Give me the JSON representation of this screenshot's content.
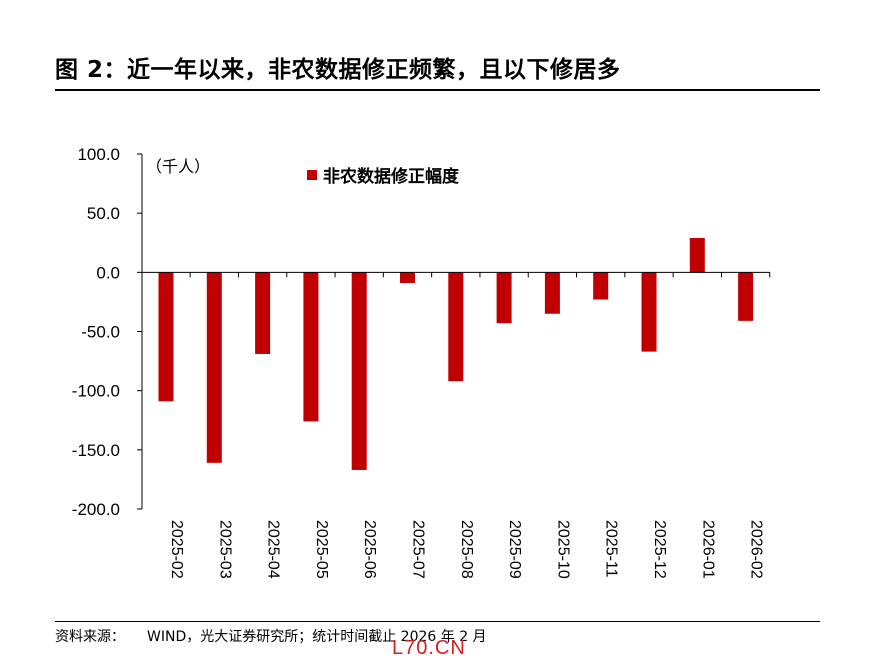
{
  "header": {
    "title": "图 2：近一年以来，非农数据修正频繁，且以下修居多"
  },
  "footer": {
    "source_label": "资料来源：",
    "source_text": "WIND，光大证券研究所；统计时间截止 2026 年 2 月"
  },
  "watermark": {
    "text": "L70.CN"
  },
  "chart_data": {
    "type": "bar",
    "title": "",
    "unit_label": "（千人）",
    "xlabel": "",
    "ylabel": "",
    "categories": [
      "2025-02",
      "2025-03",
      "2025-04",
      "2025-05",
      "2025-06",
      "2025-07",
      "2025-08",
      "2025-09",
      "2025-10",
      "2025-11",
      "2025-12",
      "2026-01",
      "2026-02"
    ],
    "series": [
      {
        "name": "非农数据修正幅度",
        "color": "#c00000",
        "values": [
          -109,
          -161,
          -69,
          -126,
          -167,
          -9,
          -92,
          -43,
          -35,
          -23,
          -67,
          29,
          -41
        ]
      }
    ],
    "ylim": [
      -200,
      100
    ],
    "yticks": [
      100,
      50,
      0,
      -50,
      -100,
      -150,
      -200
    ],
    "ytick_labels": [
      "100.0",
      "50.0",
      "0.0",
      "-50.0",
      "-100.0",
      "-150.0",
      "-200.0"
    ],
    "grid": false,
    "legend_position": "top"
  }
}
